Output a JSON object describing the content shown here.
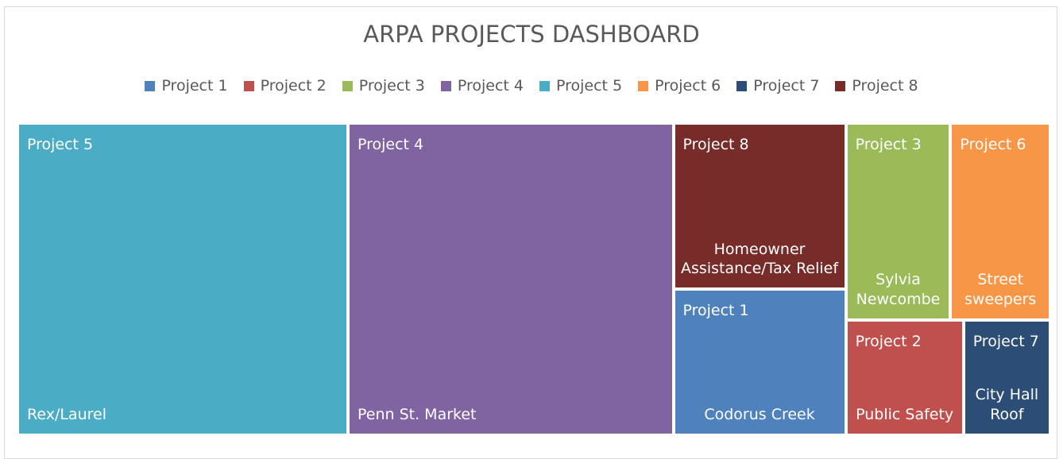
{
  "chart_data": {
    "type": "treemap",
    "title": "ARPA PROJECTS DASHBOARD",
    "categories": [
      "Project 1",
      "Project 2",
      "Project 3",
      "Project 4",
      "Project 5",
      "Project 6",
      "Project 7",
      "Project 8"
    ],
    "labels": [
      "Codorus Creek",
      "Public Safety",
      "Sylvia Newcombe",
      "Penn St. Market",
      "Rex/Laurel",
      "Street sweepers",
      "City Hall Roof",
      "Homeowner Assistance/Tax Relief"
    ],
    "values": [
      7.8,
      4.2,
      6.4,
      31.5,
      32,
      6.1,
      3.1,
      8.9
    ],
    "colors": [
      "#4f81bd",
      "#c0504d",
      "#9bbb59",
      "#8064a2",
      "#4bacc6",
      "#f79646",
      "#2c4d75",
      "#772c2a"
    ],
    "legend": "top"
  }
}
